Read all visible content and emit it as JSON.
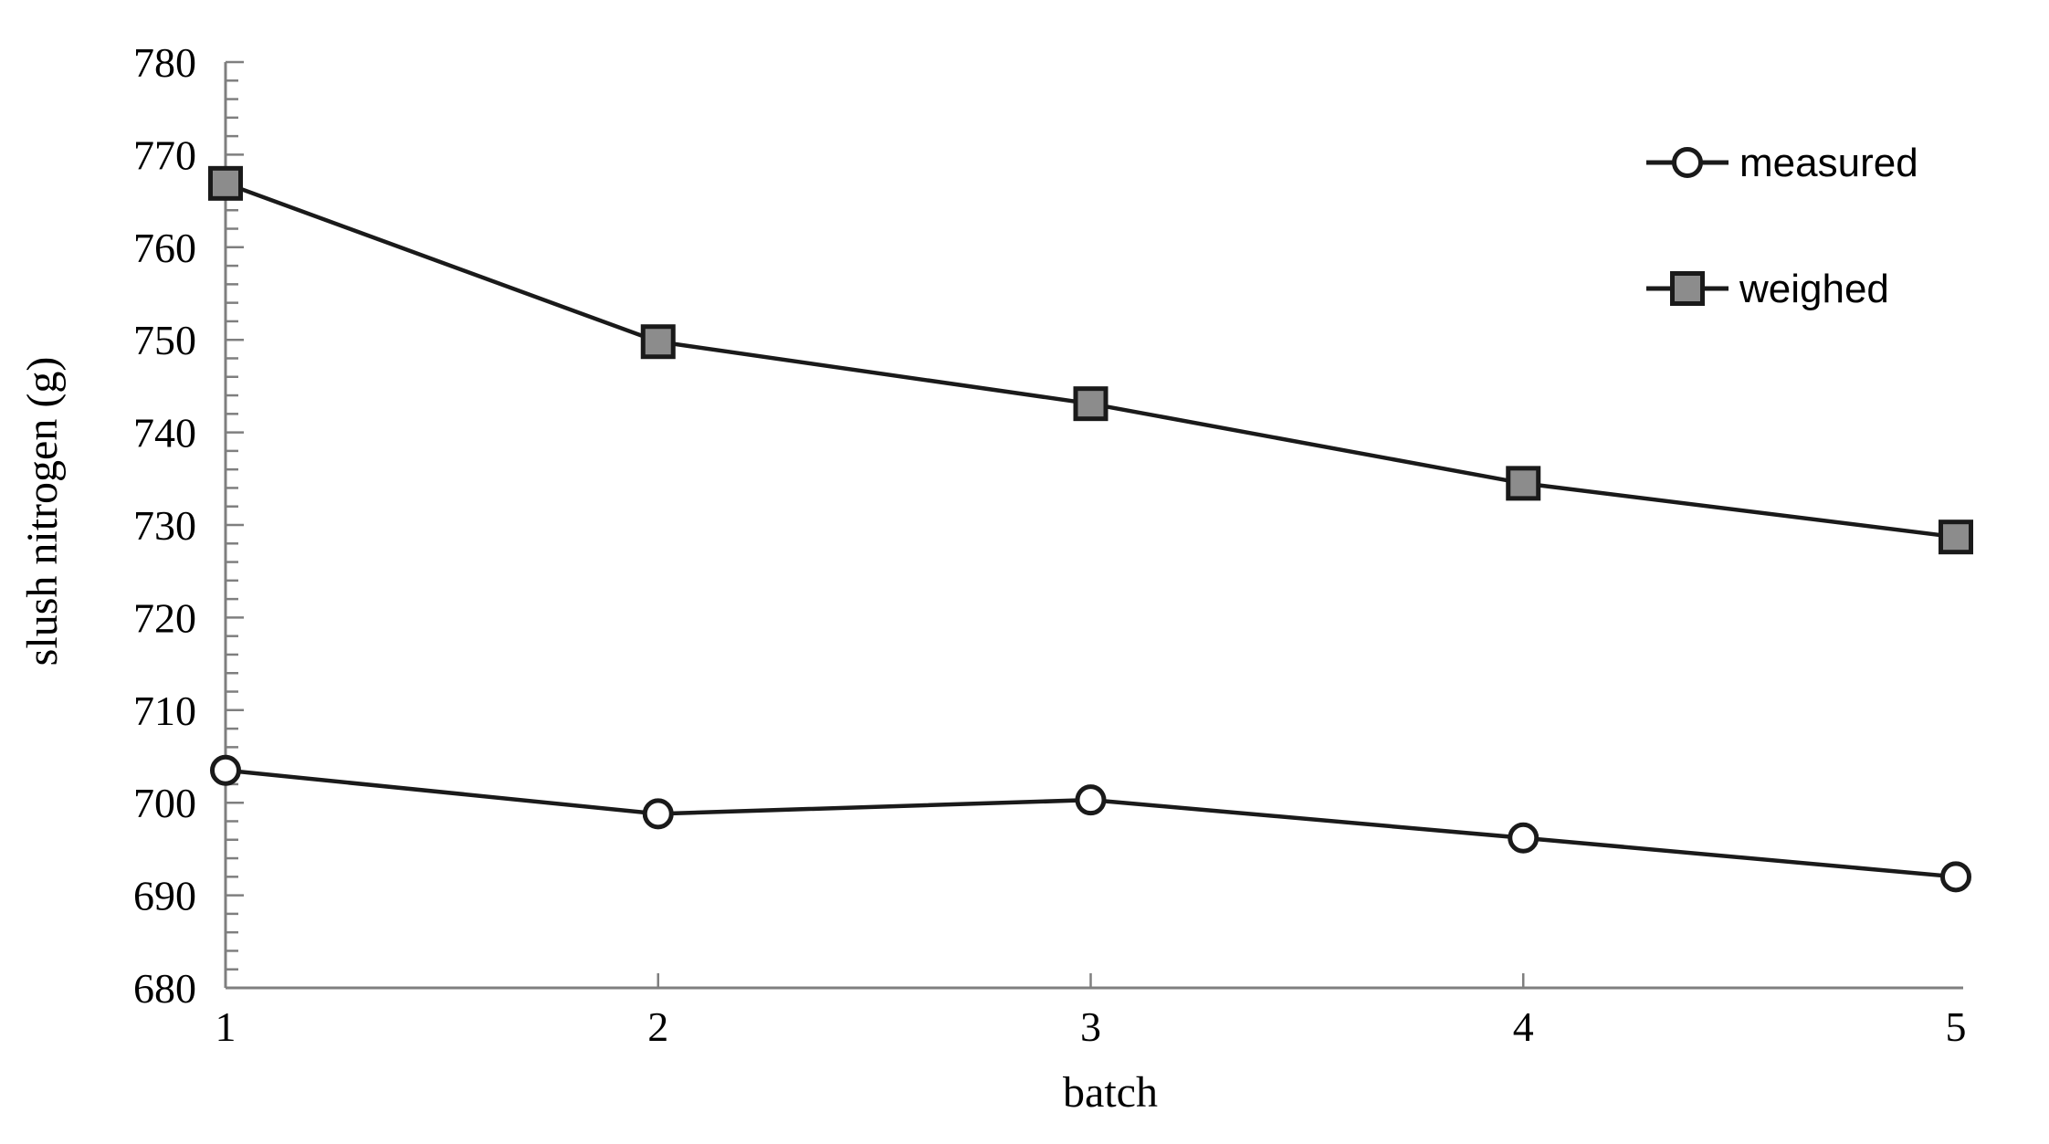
{
  "chart_data": {
    "type": "line",
    "title": "",
    "xlabel": "batch",
    "ylabel": "slush nitrogen (g)",
    "x": [
      1,
      2,
      3,
      4,
      5
    ],
    "xtick_labels": [
      "1",
      "2",
      "3",
      "4",
      "5"
    ],
    "ytick_labels": [
      "780",
      "770",
      "760",
      "750",
      "740",
      "730",
      "720",
      "710",
      "700",
      "690",
      "680"
    ],
    "ylim": [
      680,
      780
    ],
    "ytick_step": 10,
    "yminor_step": 2,
    "grid": false,
    "legend_position": "upper-right",
    "series": [
      {
        "name": "measured",
        "marker": "circle",
        "marker_fill": "#ffffff",
        "values": [
          703.5,
          698.8,
          700.3,
          696.2,
          692.0
        ]
      },
      {
        "name": "weighed",
        "marker": "square",
        "marker_fill": "#8c8c8c",
        "values": [
          766.9,
          749.8,
          743.1,
          734.5,
          728.7
        ]
      }
    ]
  },
  "colors": {
    "line": "#1a1a1a",
    "marker_stroke": "#1a1a1a",
    "square_fill": "#8c8c8c",
    "circle_fill": "#ffffff",
    "axis": "#7f7f7f",
    "text": "#000000"
  }
}
